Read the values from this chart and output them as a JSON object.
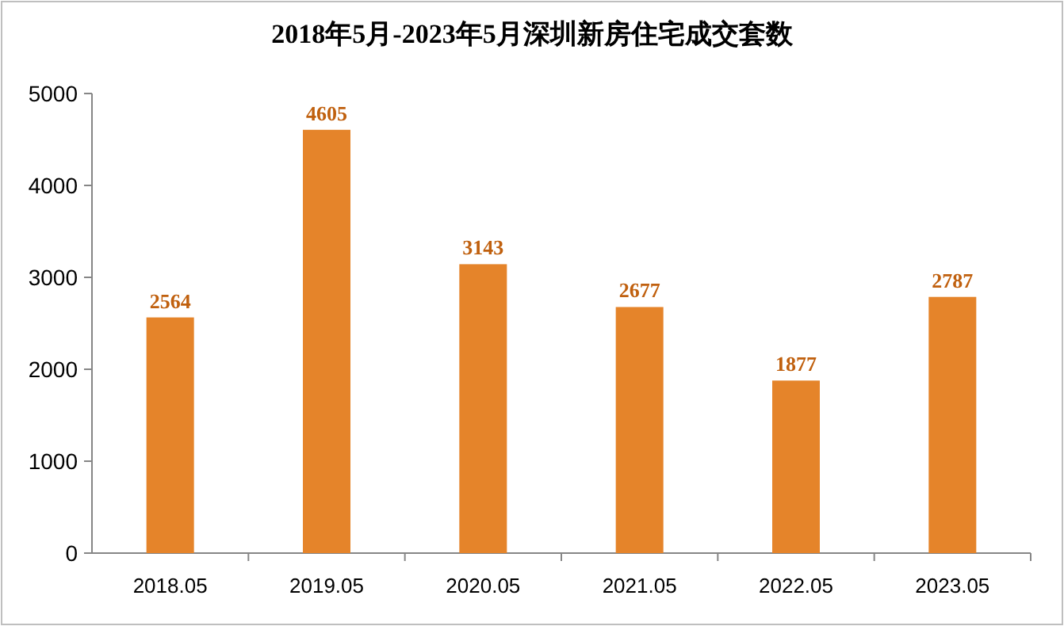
{
  "chart_data": {
    "type": "bar",
    "title": "2018年5月-2023年5月深圳新房住宅成交套数",
    "categories": [
      "2018.05",
      "2019.05",
      "2020.05",
      "2021.05",
      "2022.05",
      "2023.05"
    ],
    "values": [
      2564,
      4605,
      3143,
      2677,
      1877,
      2787
    ],
    "color": "#e5842a",
    "ylim": [
      0,
      5000
    ],
    "yticks": [
      0,
      1000,
      2000,
      3000,
      4000,
      5000
    ],
    "data_labels": true,
    "grid": false
  }
}
